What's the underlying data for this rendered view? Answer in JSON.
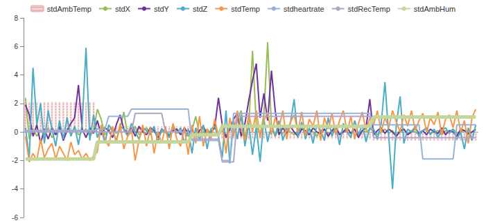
{
  "chart_data": {
    "type": "line",
    "categories": [
      null,
      null,
      null,
      null,
      null,
      null,
      null,
      null,
      null,
      null,
      null,
      null,
      null,
      null,
      null,
      null,
      null,
      null,
      null,
      null,
      null,
      null,
      null,
      null,
      null,
      null,
      null,
      null,
      null,
      null,
      null,
      null,
      null,
      null,
      null,
      null,
      null,
      null,
      null,
      null,
      null,
      null,
      null,
      null,
      null,
      null,
      null,
      null,
      null,
      null,
      null,
      null,
      null,
      null,
      null,
      null,
      null,
      null,
      null,
      null,
      null,
      null,
      null,
      null,
      null,
      null,
      null,
      null,
      null,
      null,
      null,
      null,
      null,
      null,
      null,
      null,
      null,
      null,
      null,
      null,
      null,
      null,
      null,
      null,
      null,
      null,
      null,
      null,
      null,
      null,
      null,
      null,
      null,
      null,
      null,
      null,
      null,
      null,
      null,
      null,
      null,
      null,
      null,
      null,
      null,
      null,
      null,
      null,
      null,
      null,
      null,
      null,
      null,
      null,
      null,
      null,
      null,
      null,
      null,
      null
    ],
    "ylim": [
      -6,
      8
    ],
    "yticks": [
      -6,
      -4,
      -2,
      0,
      2,
      4,
      6,
      8
    ],
    "grid": false,
    "legend": "top",
    "tick_labels": "y",
    "series": [
      {
        "name": "stdAmbTemp",
        "type": "bar",
        "color": "#e6b9b8",
        "values": [
          2.1,
          2.1,
          2.1,
          2.1,
          2.1,
          2.1,
          2.1,
          2.1,
          2.1,
          2.1,
          2.1,
          2.1,
          2.1,
          2.1,
          2.1,
          2.1,
          2.1,
          2.1,
          2.1,
          0.4,
          0.4,
          0.4,
          0.4,
          0.4,
          0.4,
          0.4,
          0.4,
          0.4,
          0.4,
          0.4,
          0.4,
          0.4,
          0.4,
          0.4,
          0.4,
          0.4,
          0.4,
          0.4,
          0.4,
          0.4,
          0.4,
          0.4,
          0.4,
          0.4,
          -0.1,
          -0.1,
          -0.1,
          -0.1,
          -0.1,
          -0.1,
          -0.1,
          -0.1,
          -0.5,
          -0.5,
          -0.5,
          -0.5,
          -0.5,
          -0.5,
          -0.5,
          -0.5,
          -0.5,
          -0.5,
          -0.5,
          -0.5,
          -0.5,
          -0.5,
          -0.5,
          -0.5,
          -0.5,
          -0.5,
          -0.5,
          -0.5,
          -0.5,
          -0.5,
          -0.5,
          -0.5,
          -0.5,
          -0.5,
          -0.5,
          -0.5,
          -0.5,
          -0.5,
          -0.5,
          -0.5,
          -0.5,
          -0.5,
          -0.5,
          -0.5,
          -0.5,
          -0.5,
          -0.5,
          -0.5,
          -0.6,
          -0.6,
          -0.6,
          -0.6,
          -0.6,
          -0.6,
          -0.6,
          -0.6,
          -0.6,
          -0.6,
          -0.6,
          -0.6,
          -0.6,
          -0.6,
          -0.6,
          -0.6,
          -0.6,
          -0.6,
          -0.6,
          -0.6,
          -0.6,
          -0.6,
          -0.6,
          -0.6,
          -0.6,
          -0.6,
          -0.6,
          -0.6
        ]
      },
      {
        "name": "stdX",
        "type": "line",
        "color": "#9bbb59",
        "marker": "none",
        "line_style": "solid",
        "values": [
          2.4,
          -0.5,
          0.2,
          -0.3,
          0.1,
          -0.2,
          0.3,
          -0.4,
          0.0,
          0.2,
          -0.3,
          0.1,
          -0.1,
          0.3,
          -0.2,
          0.0,
          0.2,
          -0.3,
          0.1,
          1.6,
          0.9,
          -0.2,
          0.1,
          0.3,
          -0.1,
          0.2,
          1.4,
          -0.3,
          0.0,
          0.4,
          -0.2,
          0.1,
          0.3,
          -0.1,
          0.2,
          -0.4,
          0.0,
          0.1,
          -0.2,
          0.3,
          0.0,
          -0.1,
          0.2,
          -0.3,
          0.1,
          1.1,
          -0.2,
          0.0,
          0.2,
          -0.1,
          0.3,
          -0.2,
          0.1,
          -0.3,
          0.2,
          -0.1,
          0.8,
          1.5,
          -0.4,
          0.3,
          5.7,
          0.5,
          -0.2,
          1.2,
          6.3,
          0.4,
          -0.3,
          0.2,
          -0.1,
          0.3,
          0.0,
          -0.2,
          0.1,
          0.3,
          -0.1,
          0.2,
          0.0,
          -0.3,
          0.1,
          0.2,
          -0.1,
          0.0,
          0.3,
          -0.2,
          0.1,
          0.0,
          -0.1,
          0.2,
          -0.3,
          0.1,
          0.0,
          0.2,
          0.1,
          -0.2,
          0.0,
          0.2,
          -0.1,
          0.1,
          -0.3,
          0.0,
          0.2,
          -0.1,
          0.1,
          0.0,
          -0.2,
          0.1,
          0.2,
          -0.1,
          0.0,
          0.1,
          -0.2,
          0.1,
          0.0,
          0.2,
          -0.1,
          0.0,
          0.1,
          -0.2,
          0.0,
          0.1
        ]
      },
      {
        "name": "stdY",
        "type": "line",
        "color": "#7030a0",
        "marker": "none",
        "line_style": "solid",
        "values": [
          1.9,
          1.2,
          -0.3,
          0.5,
          -0.8,
          0.2,
          -0.5,
          0.3,
          -0.2,
          0.4,
          -0.6,
          0.1,
          0.6,
          1.0,
          3.3,
          0.2,
          -0.4,
          0.3,
          -0.1,
          0.8,
          -0.2,
          0.3,
          0.1,
          -0.4,
          0.5,
          1.2,
          0.2,
          -0.1,
          0.3,
          -0.3,
          0.4,
          0.0,
          -0.2,
          0.3,
          0.1,
          -0.4,
          0.2,
          0.0,
          -0.3,
          0.1,
          0.2,
          -0.2,
          0.3,
          -0.1,
          0.2,
          -0.3,
          0.1,
          0.4,
          -0.2,
          0.0,
          0.3,
          2.4,
          0.5,
          -0.4,
          0.2,
          0.9,
          1.3,
          -0.3,
          0.6,
          2.2,
          3.6,
          4.8,
          1.0,
          2.7,
          0.8,
          4.3,
          1.5,
          -0.2,
          0.3,
          -0.1,
          0.4,
          0.0,
          -0.3,
          0.2,
          0.1,
          -0.2,
          0.3,
          0.0,
          -0.1,
          0.2,
          -0.3,
          0.1,
          0.4,
          -0.2,
          0.0,
          0.3,
          -0.1,
          0.2,
          -0.4,
          0.1,
          0.3,
          2.3,
          -0.2,
          0.1,
          0.3,
          -0.1,
          0.2,
          0.0,
          -0.3,
          0.1,
          0.2,
          -0.2,
          0.0,
          0.3,
          -0.1,
          0.1,
          -0.2,
          0.2,
          0.0,
          -0.1,
          0.3,
          -0.2,
          0.1,
          0.0,
          -0.3,
          0.2,
          0.1,
          -0.1,
          0.0,
          0.2
        ]
      },
      {
        "name": "stdZ",
        "type": "line",
        "color": "#4bacc6",
        "marker": "none",
        "line_style": "solid",
        "values": [
          0.3,
          -1.8,
          4.5,
          0.5,
          2.0,
          -0.8,
          1.5,
          0.2,
          -1.0,
          0.8,
          -0.5,
          1.0,
          -0.3,
          0.4,
          -0.9,
          0.6,
          5.9,
          -0.6,
          1.2,
          -0.4,
          0.3,
          -0.8,
          0.5,
          0.1,
          -0.6,
          0.4,
          0.2,
          -0.3,
          0.6,
          0.0,
          -0.5,
          0.3,
          0.1,
          -0.2,
          0.4,
          -0.7,
          0.2,
          0.0,
          -0.4,
          0.5,
          -0.1,
          0.3,
          -0.8,
          0.2,
          -1.5,
          0.3,
          -0.6,
          0.5,
          -1.2,
          0.2,
          0.4,
          -0.3,
          -1.8,
          1.5,
          -2.2,
          0.8,
          -0.5,
          1.2,
          -1.0,
          0.6,
          -1.6,
          0.4,
          -2.1,
          0.9,
          -0.7,
          0.5,
          -0.3,
          0.8,
          -0.6,
          0.2,
          0.6,
          2.3,
          -0.4,
          0.7,
          -0.5,
          0.3,
          -0.8,
          0.5,
          0.1,
          -0.6,
          1.0,
          -0.3,
          0.4,
          -0.9,
          0.6,
          0.0,
          -0.4,
          0.8,
          -0.2,
          0.5,
          -0.7,
          0.3,
          0.2,
          -0.5,
          0.6,
          3.5,
          -0.3,
          -4.0,
          0.5,
          2.5,
          -0.8,
          0.2,
          0.0,
          0.4,
          -0.3,
          0.1,
          0.3,
          -0.2,
          0.2,
          -0.4,
          0.1,
          0.3,
          -0.1,
          0.2,
          -0.5,
          0.0,
          -1.2,
          0.3,
          -0.6,
          0.5
        ]
      },
      {
        "name": "stdTemp",
        "type": "line",
        "color": "#f79646",
        "marker": "none",
        "line_style": "solid",
        "values": [
          -0.3,
          -2.1,
          -1.5,
          -2.0,
          -0.5,
          -1.8,
          -1.2,
          -0.8,
          -1.9,
          -1.0,
          -1.5,
          -2.0,
          -0.7,
          -1.6,
          -1.3,
          -1.9,
          -1.5,
          -2.0,
          -1.7,
          -1.4,
          0.5,
          -0.5,
          -1.0,
          0.4,
          -0.8,
          0.6,
          -1.2,
          -0.3,
          0.2,
          -2.0,
          -0.6,
          0.5,
          -1.0,
          0.3,
          -1.5,
          0.0,
          -0.8,
          0.4,
          -1.2,
          0.6,
          -0.5,
          -1.0,
          0.3,
          -1.6,
          0.5,
          -0.8,
          1.1,
          -1.0,
          0.2,
          -0.5,
          0.9,
          -0.3,
          0.6,
          -1.5,
          1.0,
          -0.3,
          1.5,
          0.2,
          -0.6,
          1.3,
          0.0,
          1.5,
          -0.4,
          0.8,
          1.4,
          -0.2,
          1.0,
          0.3,
          1.5,
          -0.5,
          0.7,
          1.2,
          0.0,
          1.4,
          -0.3,
          0.9,
          0.4,
          1.5,
          -0.6,
          1.0,
          0.2,
          1.3,
          -0.2,
          0.8,
          1.5,
          0.0,
          1.1,
          -0.5,
          0.6,
          1.4,
          0.1,
          1.0,
          0.5,
          1.5,
          0.0,
          1.0,
          0.3,
          1.5,
          0.7,
          0.0,
          1.2,
          0.4,
          1.5,
          0.1,
          0.8,
          1.3,
          0.0,
          1.0,
          0.5,
          1.4,
          -0.2,
          0.9,
          1.2,
          0.3,
          1.5,
          0.0,
          0.8,
          -0.8,
          1.0,
          1.6
        ]
      },
      {
        "name": "stdheartrate",
        "type": "line",
        "color": "#95b3d7",
        "marker": "none",
        "line_style": "solid",
        "values": [
          0.1,
          0.1,
          0.1,
          0.1,
          0.1,
          0.1,
          0.1,
          0.1,
          0.1,
          0.1,
          0.1,
          0.1,
          0.1,
          0.1,
          0.1,
          0.1,
          0.1,
          0.1,
          0.1,
          0.2,
          0.2,
          0.2,
          1.1,
          1.1,
          1.1,
          1.1,
          1.1,
          1.1,
          1.6,
          1.6,
          1.6,
          1.6,
          1.6,
          1.6,
          1.6,
          1.6,
          1.6,
          1.6,
          1.6,
          1.6,
          1.6,
          1.6,
          1.6,
          1.6,
          -0.6,
          -0.6,
          -0.6,
          -0.6,
          -0.6,
          -0.6,
          -0.6,
          -0.6,
          -2.0,
          -2.0,
          -2.0,
          1.3,
          1.3,
          1.3,
          1.3,
          1.3,
          1.3,
          1.3,
          1.3,
          1.3,
          1.3,
          1.3,
          1.3,
          1.3,
          1.3,
          1.3,
          1.3,
          1.3,
          1.3,
          1.3,
          1.3,
          1.3,
          1.3,
          1.3,
          1.3,
          1.3,
          1.3,
          1.3,
          1.3,
          1.3,
          1.3,
          1.3,
          1.3,
          1.3,
          1.3,
          1.3,
          1.3,
          1.3,
          0.5,
          0.5,
          0.5,
          0.5,
          0.5,
          0.5,
          0.5,
          0.5,
          0.5,
          0.5,
          0.5,
          0.5,
          0.5,
          -1.9,
          -1.9,
          -1.9,
          -1.9,
          -1.9,
          -1.9,
          -1.9,
          -1.9,
          -1.9,
          0.5,
          0.5,
          0.5,
          0.5,
          0.5,
          0.5
        ]
      },
      {
        "name": "stdRecTemp",
        "type": "line",
        "color": "#b3a2c7",
        "marker": "none",
        "line_style": "solid",
        "values": [
          0.0,
          0.0,
          0.0,
          0.0,
          0.0,
          0.0,
          0.0,
          0.0,
          0.0,
          0.0,
          0.0,
          0.0,
          0.0,
          0.0,
          0.0,
          0.0,
          0.0,
          0.0,
          0.0,
          0.0,
          0.0,
          0.0,
          0.0,
          0.0,
          0.0,
          0.0,
          0.0,
          0.0,
          0.0,
          1.3,
          1.3,
          1.3,
          1.3,
          1.3,
          1.3,
          1.3,
          1.3,
          0.0,
          0.0,
          0.0,
          0.0,
          0.0,
          0.0,
          0.0,
          -0.5,
          -0.5,
          -0.5,
          -0.5,
          -0.5,
          -0.5,
          -0.5,
          -0.5,
          -2.1,
          -2.1,
          -2.1,
          -2.1,
          1.1,
          1.1,
          1.1,
          1.1,
          1.1,
          1.1,
          1.1,
          1.1,
          1.1,
          1.1,
          1.1,
          1.1,
          1.1,
          1.1,
          1.1,
          1.1,
          1.1,
          1.1,
          1.1,
          1.1,
          1.1,
          1.1,
          1.1,
          1.1,
          1.1,
          1.1,
          1.1,
          1.1,
          1.1,
          1.1,
          1.1,
          1.1,
          1.1,
          1.1,
          1.1,
          1.1,
          -0.4,
          -0.4,
          -0.4,
          -0.4,
          -0.4,
          -0.4,
          -0.4,
          -0.4,
          -0.4,
          -0.4,
          -0.4,
          -0.4,
          -0.4,
          -0.4,
          -0.4,
          -0.4,
          -0.4,
          -0.4,
          -0.4,
          -0.4,
          -0.4,
          -0.4,
          -0.4,
          -0.4,
          -0.4,
          -0.4,
          -0.4,
          -0.4
        ]
      },
      {
        "name": "stdAmbHum",
        "type": "line",
        "color": "#c3d69b",
        "marker": "none",
        "line_style": "solid",
        "values": [
          -1.9,
          -1.9,
          -1.9,
          -1.9,
          -1.9,
          -1.9,
          -1.9,
          -1.9,
          -1.9,
          -1.9,
          -1.9,
          -1.9,
          -1.9,
          -1.9,
          -1.9,
          -1.9,
          -1.9,
          -1.9,
          -1.9,
          -0.7,
          -0.7,
          -0.7,
          -0.7,
          -0.7,
          -0.7,
          -0.7,
          -0.7,
          -0.7,
          -0.7,
          -0.7,
          -0.7,
          -0.7,
          -0.7,
          -0.7,
          -0.7,
          -0.7,
          -0.7,
          -0.7,
          -0.7,
          -0.7,
          -0.7,
          -0.7,
          -0.7,
          -0.7,
          -0.2,
          -0.2,
          -0.2,
          -0.2,
          -0.2,
          -0.2,
          -0.2,
          -0.2,
          0.4,
          0.4,
          0.4,
          0.4,
          0.4,
          0.4,
          0.4,
          0.4,
          0.4,
          0.4,
          0.4,
          0.4,
          0.4,
          0.4,
          0.4,
          0.4,
          0.4,
          0.4,
          0.4,
          0.4,
          0.4,
          0.4,
          0.4,
          0.4,
          0.4,
          0.4,
          0.4,
          0.4,
          0.4,
          0.4,
          0.4,
          0.4,
          0.4,
          0.4,
          0.4,
          0.4,
          0.4,
          0.4,
          0.4,
          0.4,
          1.05,
          1.05,
          1.05,
          1.05,
          1.05,
          1.05,
          1.05,
          1.05,
          1.05,
          1.05,
          1.05,
          1.05,
          1.05,
          1.05,
          1.05,
          1.05,
          1.05,
          1.05,
          1.05,
          1.05,
          1.05,
          1.05,
          1.05,
          1.05,
          1.05,
          1.05,
          1.05,
          1.05
        ]
      }
    ]
  }
}
